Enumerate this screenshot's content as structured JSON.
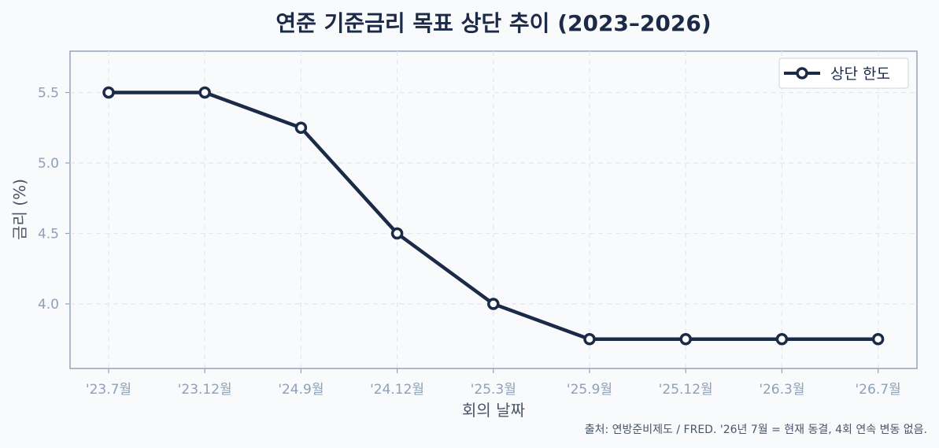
{
  "chart_data": {
    "type": "line",
    "title": "연준 기준금리 목표 상단 추이 (2023–2026)",
    "xlabel": "회의 날짜",
    "ylabel": "금리 (%)",
    "categories": [
      "'23.7월",
      "'23.12월",
      "'24.9월",
      "'24.12월",
      "'25.3월",
      "'25.9월",
      "'25.12월",
      "'26.3월",
      "'26.7월"
    ],
    "series": [
      {
        "name": "상단 한도",
        "values": [
          5.5,
          5.5,
          5.25,
          4.5,
          4.0,
          3.75,
          3.75,
          3.75,
          3.75
        ]
      }
    ],
    "yticks": [
      "4.0",
      "4.5",
      "5.0",
      "5.5"
    ],
    "ylim": [
      3.55,
      5.8
    ],
    "grid": true,
    "legend_position": "top-right",
    "line_color": "#1b2a47",
    "source_note": "출처: 연방준비제도 / FRED. '26년 7월 = 현재 동결, 4회 연속 변동 없음."
  }
}
